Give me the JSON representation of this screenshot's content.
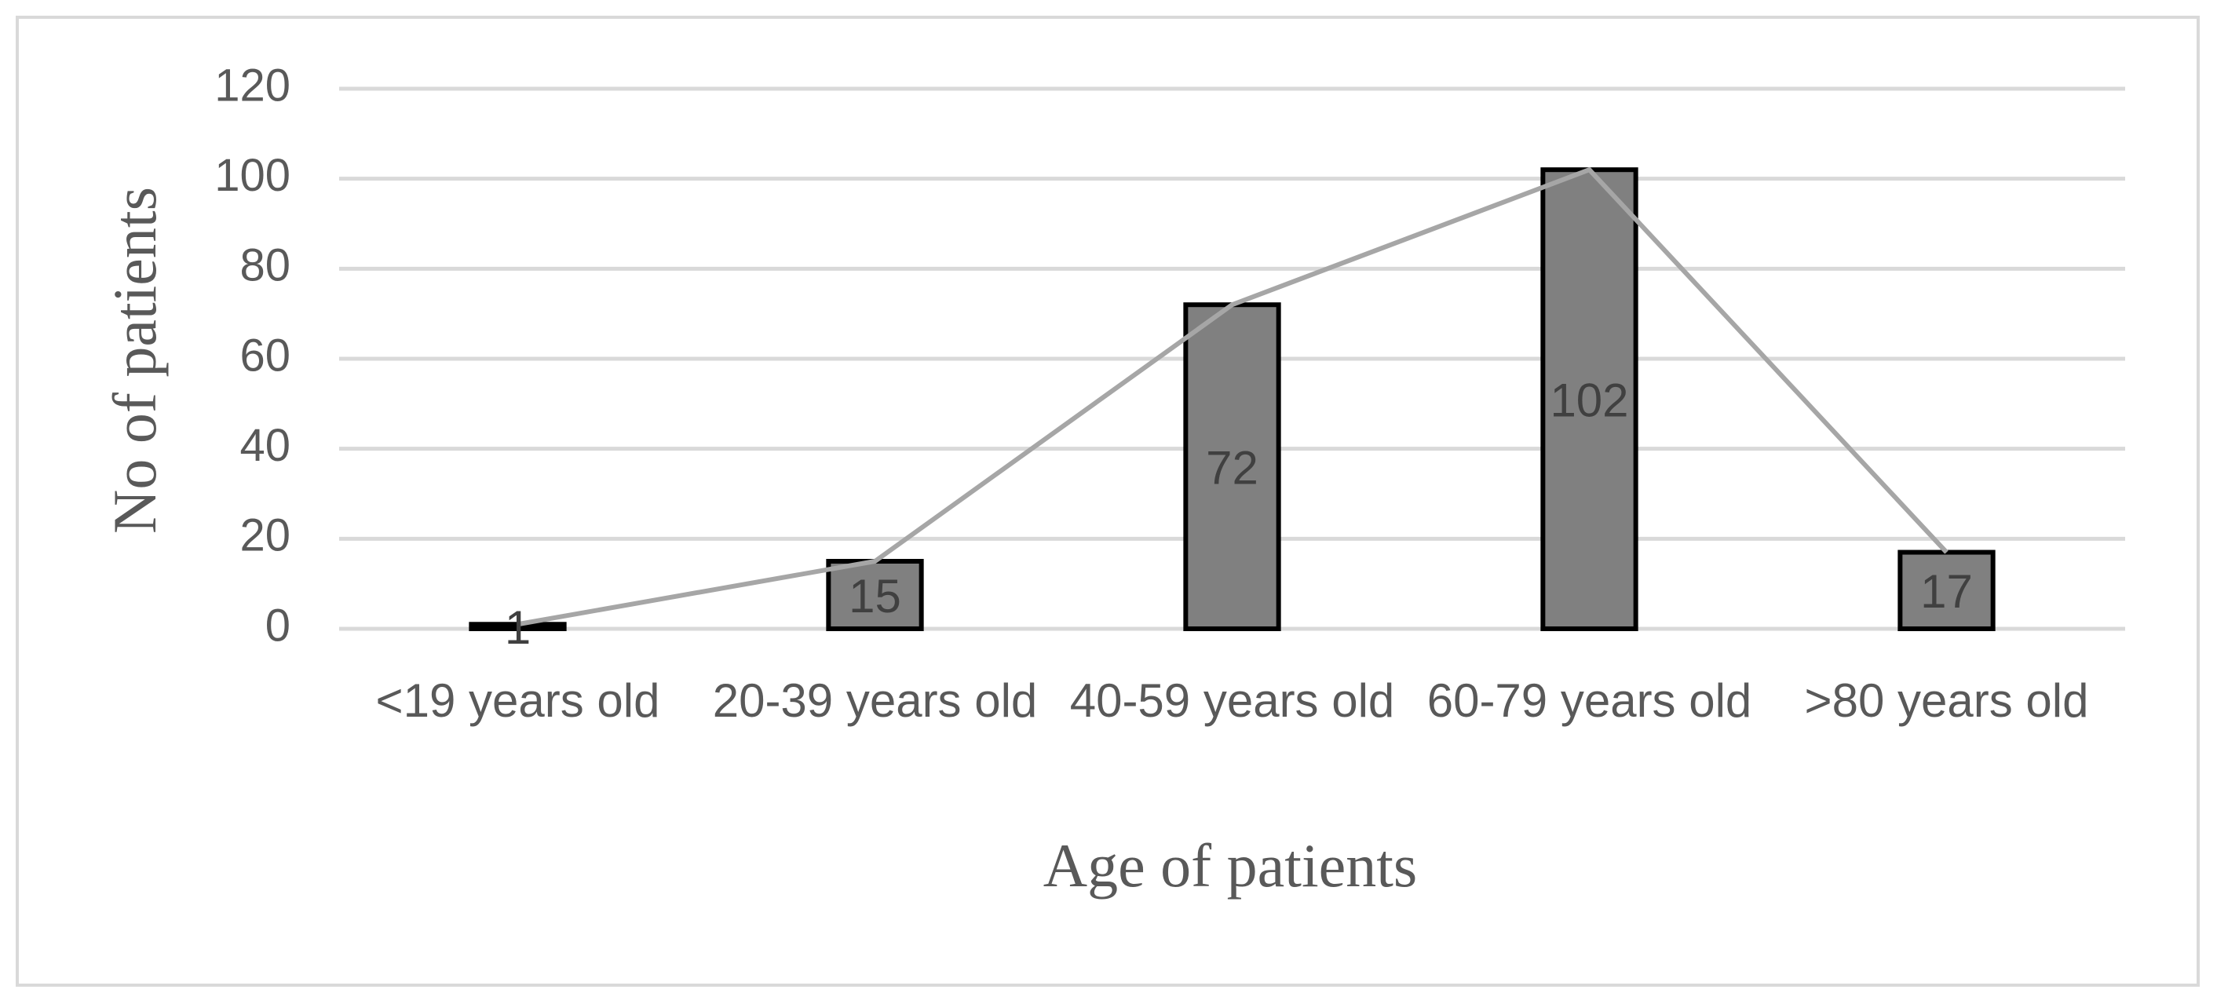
{
  "chart_data": {
    "type": "bar",
    "x_label": "Age of patients",
    "y_label": "No of patients",
    "categories": [
      "<19 years old",
      "20-39 years old",
      "40-59 years old",
      "60-79 years old",
      ">80 years old"
    ],
    "values": [
      1,
      15,
      72,
      102,
      17
    ],
    "color": "#808080",
    "edge_color": "#000000",
    "trend_line": true,
    "line_color": "#a6a6a6",
    "ylim": [
      0,
      120
    ],
    "yticks": [
      0,
      20,
      40,
      60,
      80,
      100,
      120
    ],
    "grid": true
  }
}
